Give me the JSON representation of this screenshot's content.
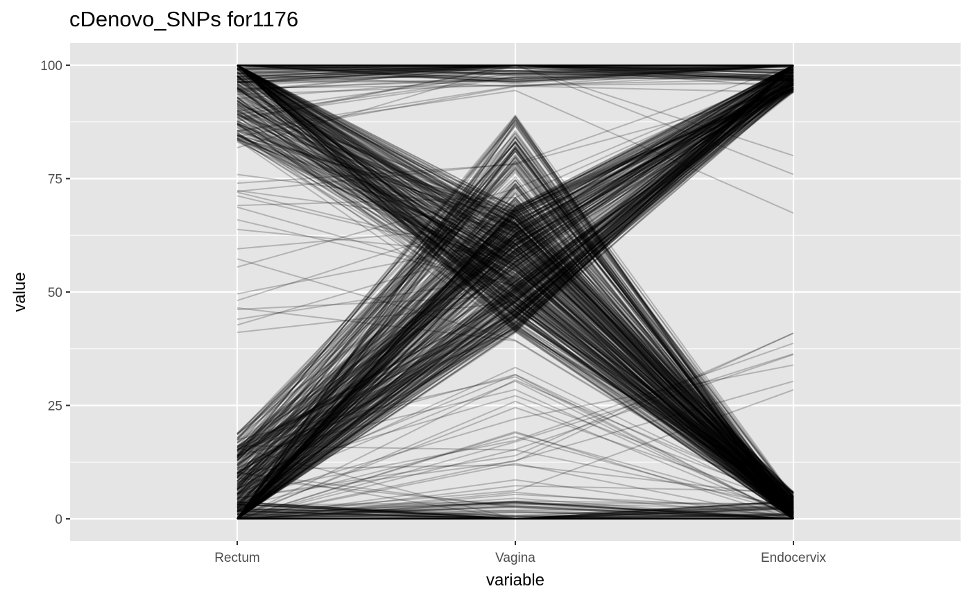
{
  "chart_data": {
    "type": "line",
    "title": "cDenovo_SNPs for1176",
    "xlabel": "variable",
    "ylabel": "value",
    "categories": [
      "Rectum",
      "Vagina",
      "Endocervix"
    ],
    "ylim": [
      0,
      100
    ],
    "yticks": [
      0,
      25,
      50,
      75,
      100
    ],
    "grid": true,
    "legend": "none",
    "line_color": "#000000",
    "line_alpha": 0.22,
    "panel_background": "#e5e5e5",
    "grid_color": "#ffffff",
    "series_groups": [
      {
        "profile": [
          0,
          0,
          0
        ],
        "count": 60
      },
      {
        "profile": [
          100,
          100,
          100
        ],
        "count": 60
      },
      {
        "profile": [
          97,
          99,
          100
        ],
        "count": 25
      },
      {
        "profile": [
          3,
          55,
          98
        ],
        "count": 260
      },
      {
        "profile": [
          97,
          55,
          2
        ],
        "count": 260
      },
      {
        "profile": [
          5,
          75,
          1
        ],
        "count": 120
      },
      {
        "profile": [
          5,
          20,
          2
        ],
        "count": 18
      },
      {
        "profile": [
          98,
          99,
          99
        ],
        "count": 10
      },
      {
        "profile": [
          3,
          2,
          0
        ],
        "count": 12
      },
      {
        "profile": [
          62,
          65,
          98
        ],
        "count": 14
      },
      {
        "profile": [
          55,
          50,
          1
        ],
        "count": 6
      },
      {
        "profile": [
          2,
          15,
          30
        ],
        "count": 8
      },
      {
        "profile": [
          95,
          98,
          80
        ],
        "count": 4
      }
    ]
  }
}
